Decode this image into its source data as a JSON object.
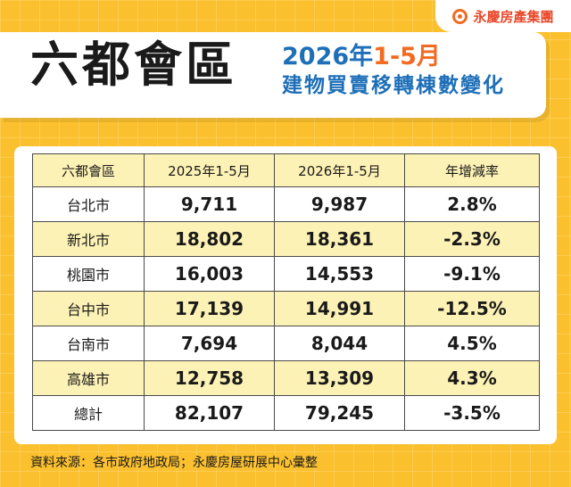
{
  "brand": {
    "name": "永慶房產集團",
    "icon": "yongqing-logo-icon"
  },
  "header": {
    "main_title": "六都會區",
    "subtitle_year": "2026年",
    "subtitle_period": "1-5月",
    "subtitle_line2": "建物買賣移轉棟數變化"
  },
  "table": {
    "headers": [
      "六都會區",
      "2025年1-5月",
      "2026年1-5月",
      "年增減率"
    ],
    "rows": [
      [
        "台北市",
        "9,711",
        "9,987",
        "2.8%"
      ],
      [
        "新北市",
        "18,802",
        "18,361",
        "-2.3%"
      ],
      [
        "桃園市",
        "16,003",
        "14,553",
        "-9.1%"
      ],
      [
        "台中市",
        "17,139",
        "14,991",
        "-12.5%"
      ],
      [
        "台南市",
        "7,694",
        "8,044",
        "4.5%"
      ],
      [
        "高雄市",
        "12,758",
        "13,309",
        "4.3%"
      ],
      [
        "總計",
        "82,107",
        "79,245",
        "-3.5%"
      ]
    ]
  },
  "footer": {
    "source": "資料來源：各市政府地政局；永慶房屋研展中心彙整"
  },
  "colors": {
    "background": "#FBC02D",
    "highlight_row": "#FDF2B5",
    "brand_orange": "#F26B21",
    "title_blue": "#1E6FB8"
  }
}
